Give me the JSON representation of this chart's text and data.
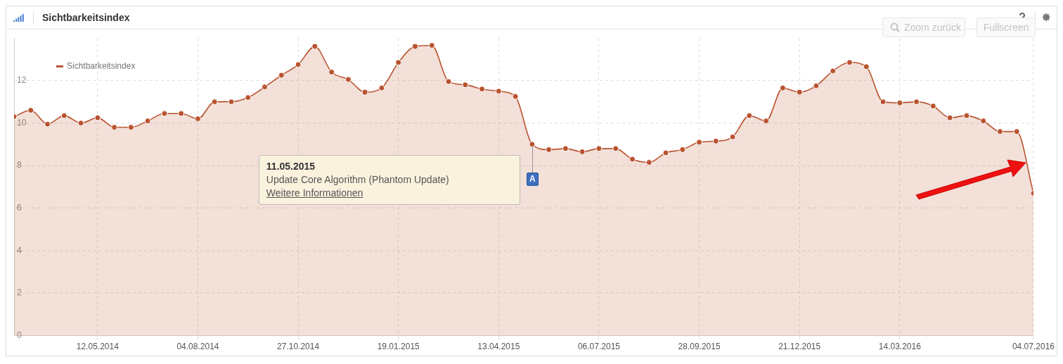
{
  "chart_data": {
    "type": "area",
    "title": "Sichtbarkeitsindex",
    "x": [
      "2014-03-03",
      "2014-03-17",
      "2014-03-31",
      "2014-04-14",
      "2014-04-28",
      "2014-05-12",
      "2014-05-26",
      "2014-06-09",
      "2014-06-23",
      "2014-07-07",
      "2014-07-21",
      "2014-08-04",
      "2014-08-18",
      "2014-09-01",
      "2014-09-15",
      "2014-09-29",
      "2014-10-13",
      "2014-10-27",
      "2014-11-10",
      "2014-11-24",
      "2014-12-08",
      "2014-12-22",
      "2015-01-05",
      "2015-01-19",
      "2015-02-02",
      "2015-02-16",
      "2015-03-02",
      "2015-03-16",
      "2015-03-30",
      "2015-04-13",
      "2015-04-27",
      "2015-05-11",
      "2015-05-25",
      "2015-06-08",
      "2015-06-22",
      "2015-07-06",
      "2015-07-20",
      "2015-08-03",
      "2015-08-17",
      "2015-08-31",
      "2015-09-14",
      "2015-09-28",
      "2015-10-12",
      "2015-10-26",
      "2015-11-09",
      "2015-11-23",
      "2015-12-07",
      "2015-12-21",
      "2016-01-04",
      "2016-01-18",
      "2016-02-01",
      "2016-02-15",
      "2016-02-29",
      "2016-03-14",
      "2016-03-28",
      "2016-04-11",
      "2016-04-25",
      "2016-05-09",
      "2016-05-23",
      "2016-06-06",
      "2016-06-20",
      "2016-07-04"
    ],
    "series": [
      {
        "name": "Sichtbarkeitsindex",
        "color": "#b9532f",
        "values": [
          10.3,
          10.6,
          9.95,
          10.35,
          10.0,
          10.25,
          9.8,
          9.8,
          10.1,
          10.45,
          10.45,
          10.2,
          11.0,
          11.0,
          11.2,
          11.7,
          12.25,
          12.75,
          13.6,
          12.4,
          12.05,
          11.45,
          11.65,
          12.85,
          13.6,
          13.65,
          11.95,
          11.8,
          11.6,
          11.5,
          11.25,
          9.0,
          8.75,
          8.8,
          8.65,
          8.8,
          8.8,
          8.3,
          8.15,
          8.6,
          8.75,
          9.1,
          9.15,
          9.35,
          10.35,
          10.1,
          11.65,
          11.45,
          11.75,
          12.45,
          12.85,
          12.65,
          11.0,
          10.95,
          11.0,
          10.8,
          10.25,
          10.35,
          10.1,
          9.6,
          9.6,
          6.7
        ]
      }
    ],
    "xlim": [
      "2014-03-03",
      "2016-07-04"
    ],
    "xticks": [
      {
        "value": "2014-05-12",
        "label": "12.05.2014"
      },
      {
        "value": "2014-08-04",
        "label": "04.08.2014"
      },
      {
        "value": "2014-10-27",
        "label": "27.10.2014"
      },
      {
        "value": "2015-01-19",
        "label": "19.01.2015"
      },
      {
        "value": "2015-04-13",
        "label": "13.04.2015"
      },
      {
        "value": "2015-07-06",
        "label": "06.07.2015"
      },
      {
        "value": "2015-09-28",
        "label": "28.09.2015"
      },
      {
        "value": "2015-12-21",
        "label": "21.12.2015"
      },
      {
        "value": "2016-03-14",
        "label": "14.03.2016"
      },
      {
        "value": "2016-07-04",
        "label": "04.07.2016"
      }
    ],
    "ylim": [
      0,
      14
    ],
    "yticks": [
      0,
      2,
      4,
      6,
      8,
      10,
      12
    ],
    "grid": true,
    "legend": "top left",
    "marker": "circle",
    "line_style": "solid",
    "annotations": [
      {
        "text": "A",
        "x": "2015-05-11"
      },
      "11.05.2015",
      "Update Core Algorithm (Phantom Update)",
      "Weitere Informationen",
      "Zoom zurück",
      "Fullscreen"
    ]
  }
}
